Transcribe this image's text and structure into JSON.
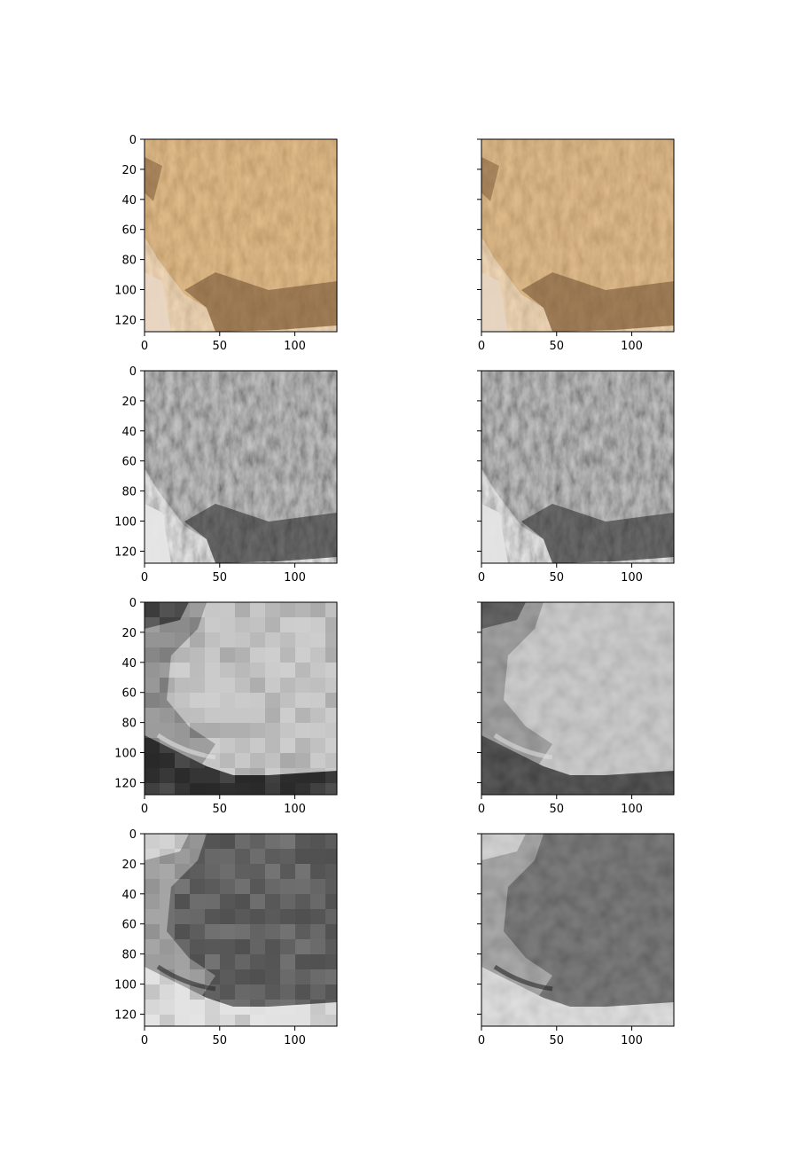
{
  "figure": {
    "layout": "4 rows x 2 columns grid of image subplots",
    "axes_range": [
      0,
      128
    ],
    "x_tick_values": [
      0,
      50,
      100
    ],
    "y_tick_values": [
      0,
      20,
      40,
      60,
      80,
      100,
      120
    ],
    "right_column_shows_y_tick_labels": false
  },
  "panels": [
    {
      "id": "r1-left",
      "row": 1,
      "column": "left",
      "content": "color photo patch of tan/brown animal fur on light background",
      "colors": [
        "#c69a63",
        "#a47442",
        "#e8d6c4",
        "#6b4a2b"
      ]
    },
    {
      "id": "r1-right",
      "row": 1,
      "column": "right",
      "content": "color photo patch of tan/brown animal fur (reconstruction)",
      "colors": [
        "#c49a66",
        "#a27545",
        "#e6d5c3",
        "#6c4b2d"
      ]
    },
    {
      "id": "r2-left",
      "row": 2,
      "column": "left",
      "content": "grayscale fur texture",
      "colors": [
        "#8a8a8a",
        "#5a5a5a",
        "#e6e6e6",
        "#2e2e2e"
      ]
    },
    {
      "id": "r2-right",
      "row": 2,
      "column": "right",
      "content": "grayscale fur texture (reconstruction)",
      "colors": [
        "#888888",
        "#5c5c5c",
        "#e4e4e4",
        "#303030"
      ]
    },
    {
      "id": "r3-left",
      "row": 3,
      "column": "left",
      "content": "blocky grayscale channel, bright fur region, dark bottom-left",
      "colors": [
        "#c7c7c7",
        "#8f8f8f",
        "#2f2f2f",
        "#e2e2e2"
      ]
    },
    {
      "id": "r3-right",
      "row": 3,
      "column": "right",
      "content": "smoother grayscale channel, bright fur region, dark bottom-left",
      "colors": [
        "#c4c4c4",
        "#8c8c8c",
        "#2c2c2c",
        "#dedede"
      ]
    },
    {
      "id": "r4-left",
      "row": 4,
      "column": "left",
      "content": "blocky inverted grayscale channel, dark fur region, light bottom-left",
      "colors": [
        "#5e5e5e",
        "#9a9a9a",
        "#e0e0e0",
        "#2a2a2a"
      ]
    },
    {
      "id": "r4-right",
      "row": 4,
      "column": "right",
      "content": "smoother inverted grayscale channel, dark fur region, light bottom-left",
      "colors": [
        "#5a5a5a",
        "#969696",
        "#dddddd",
        "#262626"
      ]
    }
  ]
}
